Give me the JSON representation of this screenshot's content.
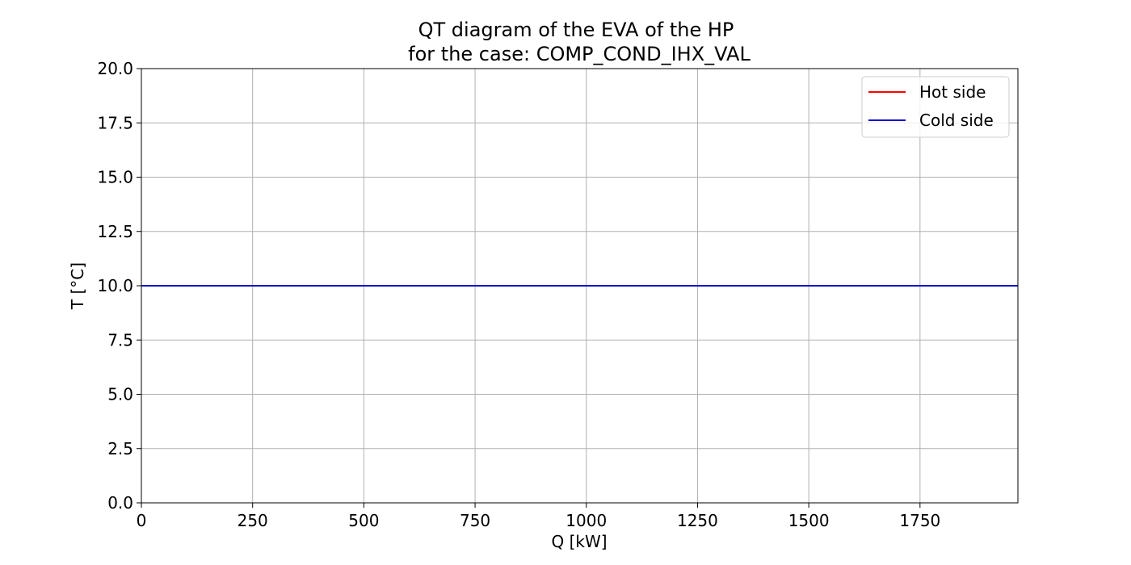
{
  "chart_data": {
    "type": "line",
    "title_line1": "QT diagram of the EVA of the HP",
    "title_line2": "for the case: COMP_COND_IHX_VAL",
    "xlabel": "Q [kW]",
    "ylabel": "T [°C]",
    "xlim": [
      0,
      1970
    ],
    "ylim": [
      0,
      20
    ],
    "xticks": [
      0,
      250,
      500,
      750,
      1000,
      1250,
      1500,
      1750
    ],
    "yticks": [
      0.0,
      2.5,
      5.0,
      7.5,
      10.0,
      12.5,
      15.0,
      17.5,
      20.0
    ],
    "ytick_labels": [
      "0.0",
      "2.5",
      "5.0",
      "7.5",
      "10.0",
      "12.5",
      "15.0",
      "17.5",
      "20.0"
    ],
    "grid": true,
    "legend_position": "top-right",
    "series": [
      {
        "name": "Hot side",
        "color": "#ff0000",
        "x": [
          0,
          1970
        ],
        "y": [
          10.0,
          10.0
        ]
      },
      {
        "name": "Cold side",
        "color": "#0000cc",
        "x": [
          0,
          1970
        ],
        "y": [
          10.0,
          10.0
        ]
      }
    ]
  }
}
